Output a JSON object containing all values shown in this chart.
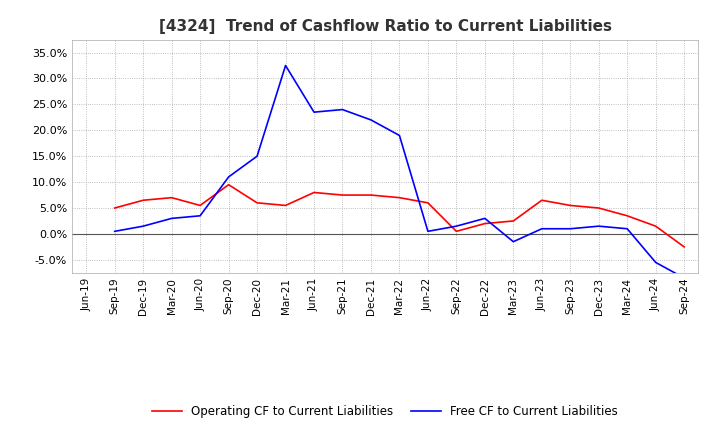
{
  "title": "[4324]  Trend of Cashflow Ratio to Current Liabilities",
  "title_fontsize": 11,
  "x_labels": [
    "Jun-19",
    "Sep-19",
    "Dec-19",
    "Mar-20",
    "Jun-20",
    "Sep-20",
    "Dec-20",
    "Mar-21",
    "Jun-21",
    "Sep-21",
    "Dec-21",
    "Mar-22",
    "Jun-22",
    "Sep-22",
    "Dec-22",
    "Mar-23",
    "Jun-23",
    "Sep-23",
    "Dec-23",
    "Mar-24",
    "Jun-24",
    "Sep-24"
  ],
  "operating_cf": [
    null,
    5.0,
    6.5,
    7.0,
    5.5,
    9.5,
    6.0,
    5.5,
    8.0,
    7.5,
    7.5,
    7.0,
    6.0,
    0.5,
    2.0,
    2.5,
    6.5,
    5.5,
    5.0,
    3.5,
    1.5,
    -2.5
  ],
  "free_cf": [
    null,
    0.5,
    1.5,
    3.0,
    3.5,
    11.0,
    15.0,
    32.5,
    23.5,
    24.0,
    22.0,
    19.0,
    0.5,
    1.5,
    3.0,
    -1.5,
    1.0,
    1.0,
    1.5,
    1.0,
    -5.5,
    -8.5
  ],
  "ylim": [
    -7.5,
    37.5
  ],
  "yticks": [
    -5.0,
    0.0,
    5.0,
    10.0,
    15.0,
    20.0,
    25.0,
    30.0,
    35.0
  ],
  "operating_color": "#FF0000",
  "free_color": "#0000FF",
  "grid_color": "#AAAAAA",
  "background_color": "#FFFFFF",
  "legend_operating": "Operating CF to Current Liabilities",
  "legend_free": "Free CF to Current Liabilities"
}
